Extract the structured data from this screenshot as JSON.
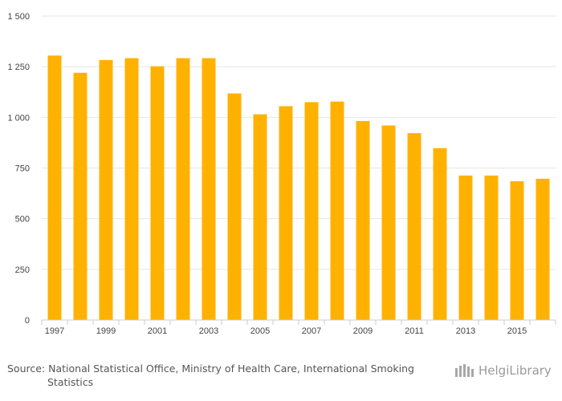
{
  "chart_data": {
    "type": "bar",
    "title": "",
    "xlabel": "",
    "ylabel": "",
    "categories": [
      "1997",
      "1998",
      "1999",
      "2000",
      "2001",
      "2002",
      "2003",
      "2004",
      "2005",
      "2006",
      "2007",
      "2008",
      "2009",
      "2010",
      "2011",
      "2012",
      "2013",
      "2014",
      "2015",
      "2016"
    ],
    "x_tick_labels": [
      "1997",
      "1999",
      "2001",
      "2003",
      "2005",
      "2007",
      "2009",
      "2011",
      "2013",
      "2015"
    ],
    "values": [
      1305,
      1220,
      1283,
      1292,
      1252,
      1292,
      1292,
      1118,
      1015,
      1055,
      1075,
      1078,
      982,
      960,
      922,
      848,
      713,
      713,
      685,
      697
    ],
    "ylim": [
      0,
      1500
    ],
    "y_ticks": [
      0,
      250,
      500,
      750,
      1000,
      1250,
      1500
    ],
    "y_tick_labels": [
      "0",
      "250",
      "500",
      "750",
      "1 000",
      "1 250",
      "1 500"
    ],
    "bar_color": "#ffb100",
    "grid": true
  },
  "footer": {
    "source_line1": "Source: National Statistical Office, Ministry of Health Care, International Smoking",
    "source_line2": "Statistics",
    "logo_text": "HelgiLibrary"
  }
}
